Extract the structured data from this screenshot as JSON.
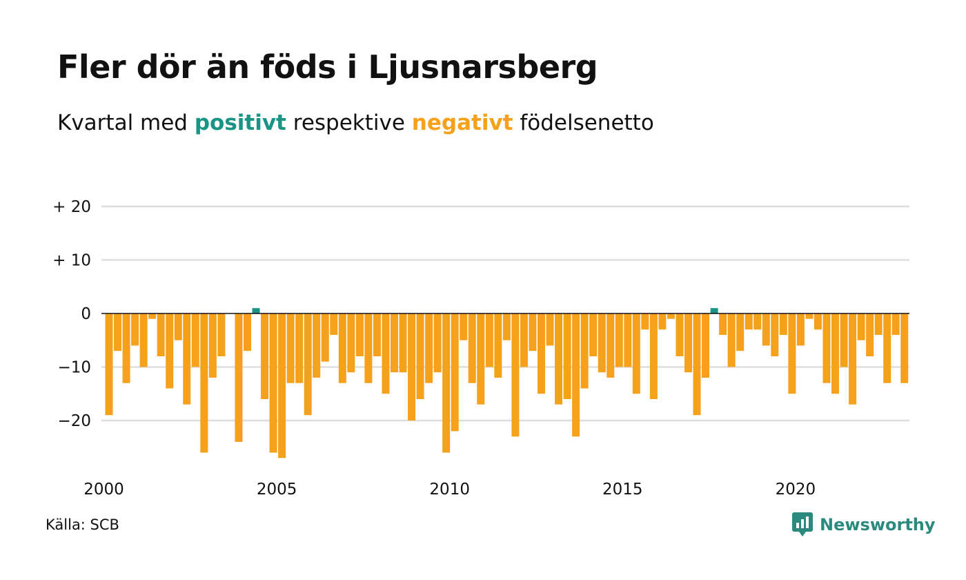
{
  "title": "Fler dör än föds i Ljusnarsberg",
  "subtitle": {
    "prefix": "Kvartal med",
    "positive_word": "positivt",
    "middle": "respektive",
    "negative_word": "negativt",
    "suffix": "födelsenetto"
  },
  "source": "Källa: SCB",
  "logo_text": "Newsworthy",
  "colors": {
    "positive": "#1a9484",
    "negative": "#f5a11c",
    "grid": "#dddddd",
    "axis": "#111111"
  },
  "chart_data": {
    "type": "bar",
    "title": "Fler dör än föds i Ljusnarsberg",
    "subtitle": "Kvartal med positivt respektive negativt födelsenetto",
    "x_start": 2000,
    "quarters_per_year": 4,
    "x_tick_labels": [
      "2000",
      "2005",
      "2010",
      "2015",
      "2020"
    ],
    "x_tick_years": [
      2000,
      2005,
      2010,
      2015,
      2020
    ],
    "y_ticks": [
      20,
      10,
      0,
      -10,
      -20
    ],
    "y_tick_labels": [
      "+ 20",
      "+ 10",
      "0",
      "−10",
      "−20"
    ],
    "ylim": [
      -28,
      20
    ],
    "grid": true,
    "values": [
      -19,
      -7,
      -13,
      -6,
      -10,
      -1,
      -8,
      -14,
      -5,
      -17,
      -10,
      -26,
      -12,
      -8,
      0,
      -24,
      -7,
      1,
      -16,
      -26,
      -27,
      -13,
      -13,
      -19,
      -12,
      -9,
      -4,
      -13,
      -11,
      -8,
      -13,
      -8,
      -15,
      -11,
      -11,
      -20,
      -16,
      -13,
      -11,
      -26,
      -22,
      -5,
      -13,
      -17,
      -10,
      -12,
      -5,
      -23,
      -10,
      -7,
      -15,
      -6,
      -17,
      -16,
      -23,
      -14,
      -8,
      -11,
      -12,
      -10,
      -10,
      -15,
      -3,
      -16,
      -3,
      -1,
      -8,
      -11,
      -19,
      -12,
      1,
      -4,
      -10,
      -7,
      -3,
      -3,
      -6,
      -8,
      -4,
      -15,
      -6,
      -1,
      -3,
      -13,
      -15,
      -10,
      -17,
      -5,
      -8,
      -4,
      -13,
      -4,
      -13
    ]
  }
}
